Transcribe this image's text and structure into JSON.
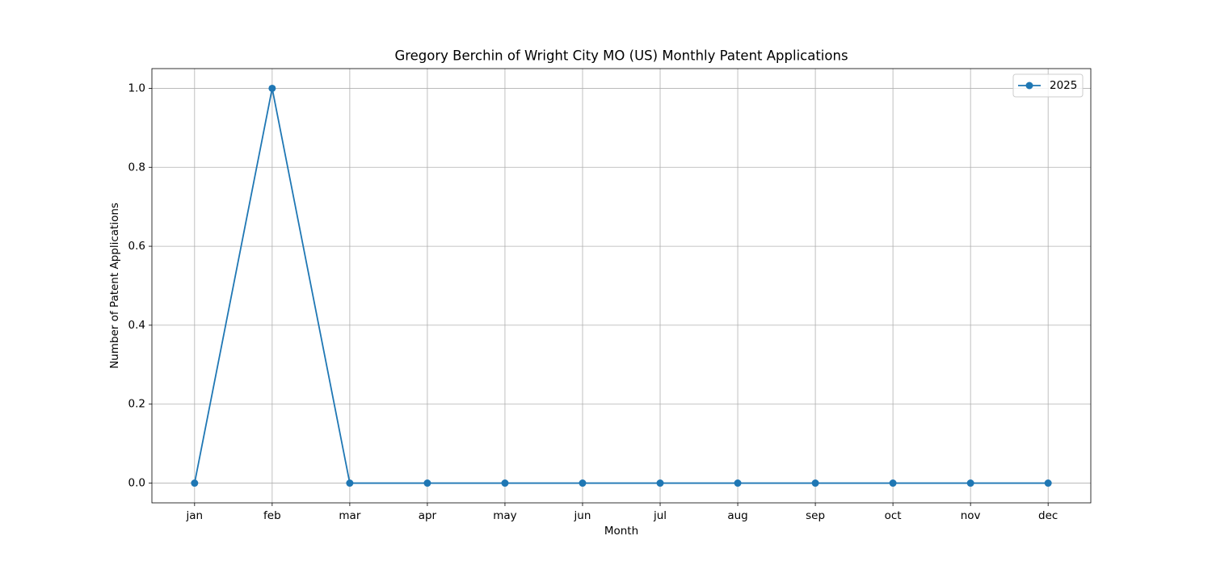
{
  "chart_data": {
    "type": "line",
    "title": "Gregory Berchin of Wright City MO (US) Monthly Patent Applications",
    "x_label": "Month",
    "y_label": "Number of Patent Applications",
    "categories": [
      "jan",
      "feb",
      "mar",
      "apr",
      "may",
      "jun",
      "jul",
      "aug",
      "sep",
      "oct",
      "nov",
      "dec"
    ],
    "series": [
      {
        "name": "2025",
        "color": "#1f77b4",
        "values": [
          0,
          1,
          0,
          0,
          0,
          0,
          0,
          0,
          0,
          0,
          0,
          0
        ]
      }
    ],
    "ylim": [
      -0.05,
      1.05
    ],
    "yticks": [
      {
        "value": 0,
        "label": "0.0"
      },
      {
        "value": 0.2,
        "label": "0.2"
      },
      {
        "value": 0.4,
        "label": "0.4"
      },
      {
        "value": 0.6,
        "label": "0.6"
      },
      {
        "value": 0.8,
        "label": "0.8"
      },
      {
        "value": 1,
        "label": "1.0"
      }
    ],
    "grid": true,
    "legend": "upper-right"
  }
}
